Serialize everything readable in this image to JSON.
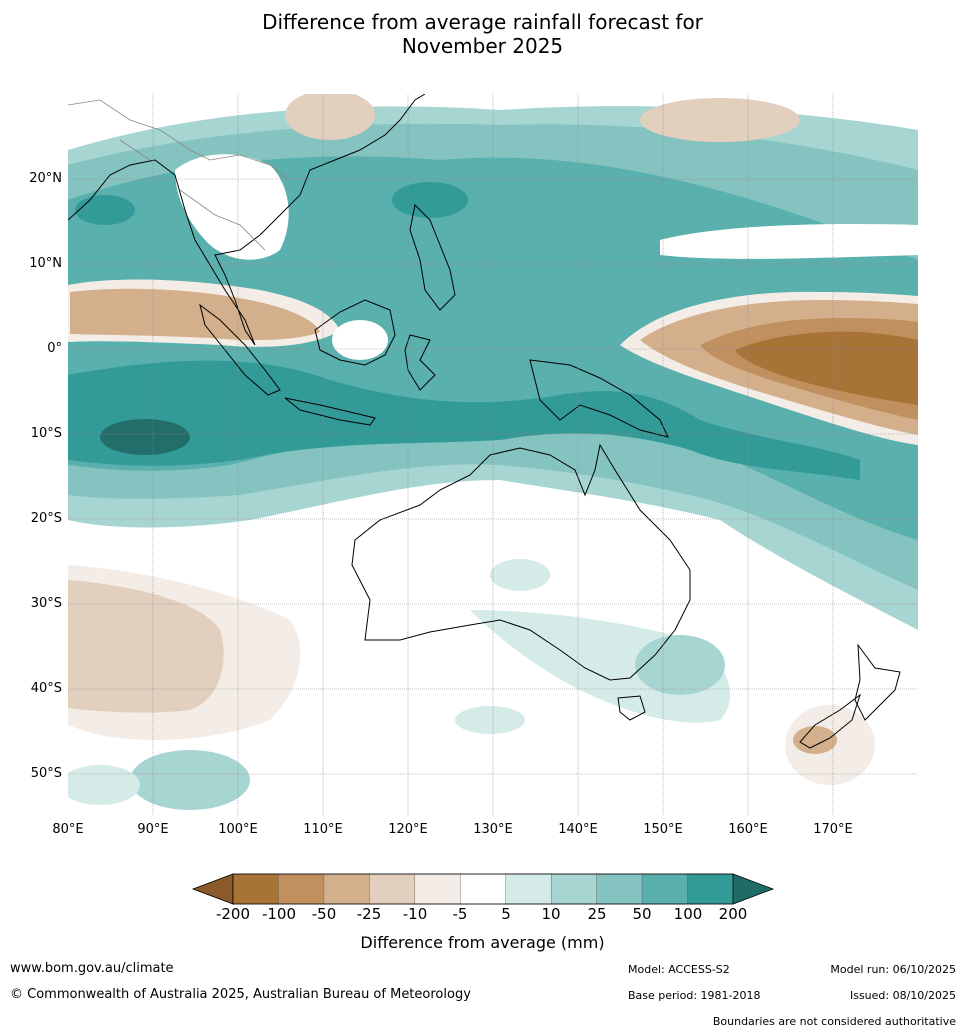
{
  "title_line1": "Difference from average rainfall forecast for",
  "title_line2": "November 2025",
  "map": {
    "lon_range": [
      80,
      180
    ],
    "lat_range": [
      -55,
      30
    ],
    "lat_labels": [
      "20°N",
      "10°N",
      "0°",
      "10°S",
      "20°S",
      "30°S",
      "40°S",
      "50°S"
    ],
    "lon_labels": [
      "80°E",
      "90°E",
      "100°E",
      "110°E",
      "120°E",
      "130°E",
      "140°E",
      "150°E",
      "160°E",
      "170°E"
    ]
  },
  "legend": {
    "title": "Difference from average (mm)",
    "ticks": [
      "-200",
      "-100",
      "-50",
      "-25",
      "-10",
      "-5",
      "5",
      "10",
      "25",
      "50",
      "100",
      "200"
    ],
    "colors": [
      "#a87337",
      "#c0915f",
      "#d3b08b",
      "#e3cfbd",
      "#f4ece6",
      "#ffffff",
      "#d4ebe8",
      "#a7d5d2",
      "#84c3c0",
      "#5ab0ad",
      "#329b98",
      "#236e6b"
    ]
  },
  "footer": {
    "url": "www.bom.gov.au/climate",
    "copyright": "© Commonwealth of Australia 2025, Australian Bureau of Meteorology",
    "model": "Model: ACCESS-S2",
    "base_period": "Base period: 1981-2018",
    "model_run": "Model run: 06/10/2025",
    "issued": "Issued: 08/10/2025",
    "disclaimer": "Boundaries are not considered authoritative"
  }
}
